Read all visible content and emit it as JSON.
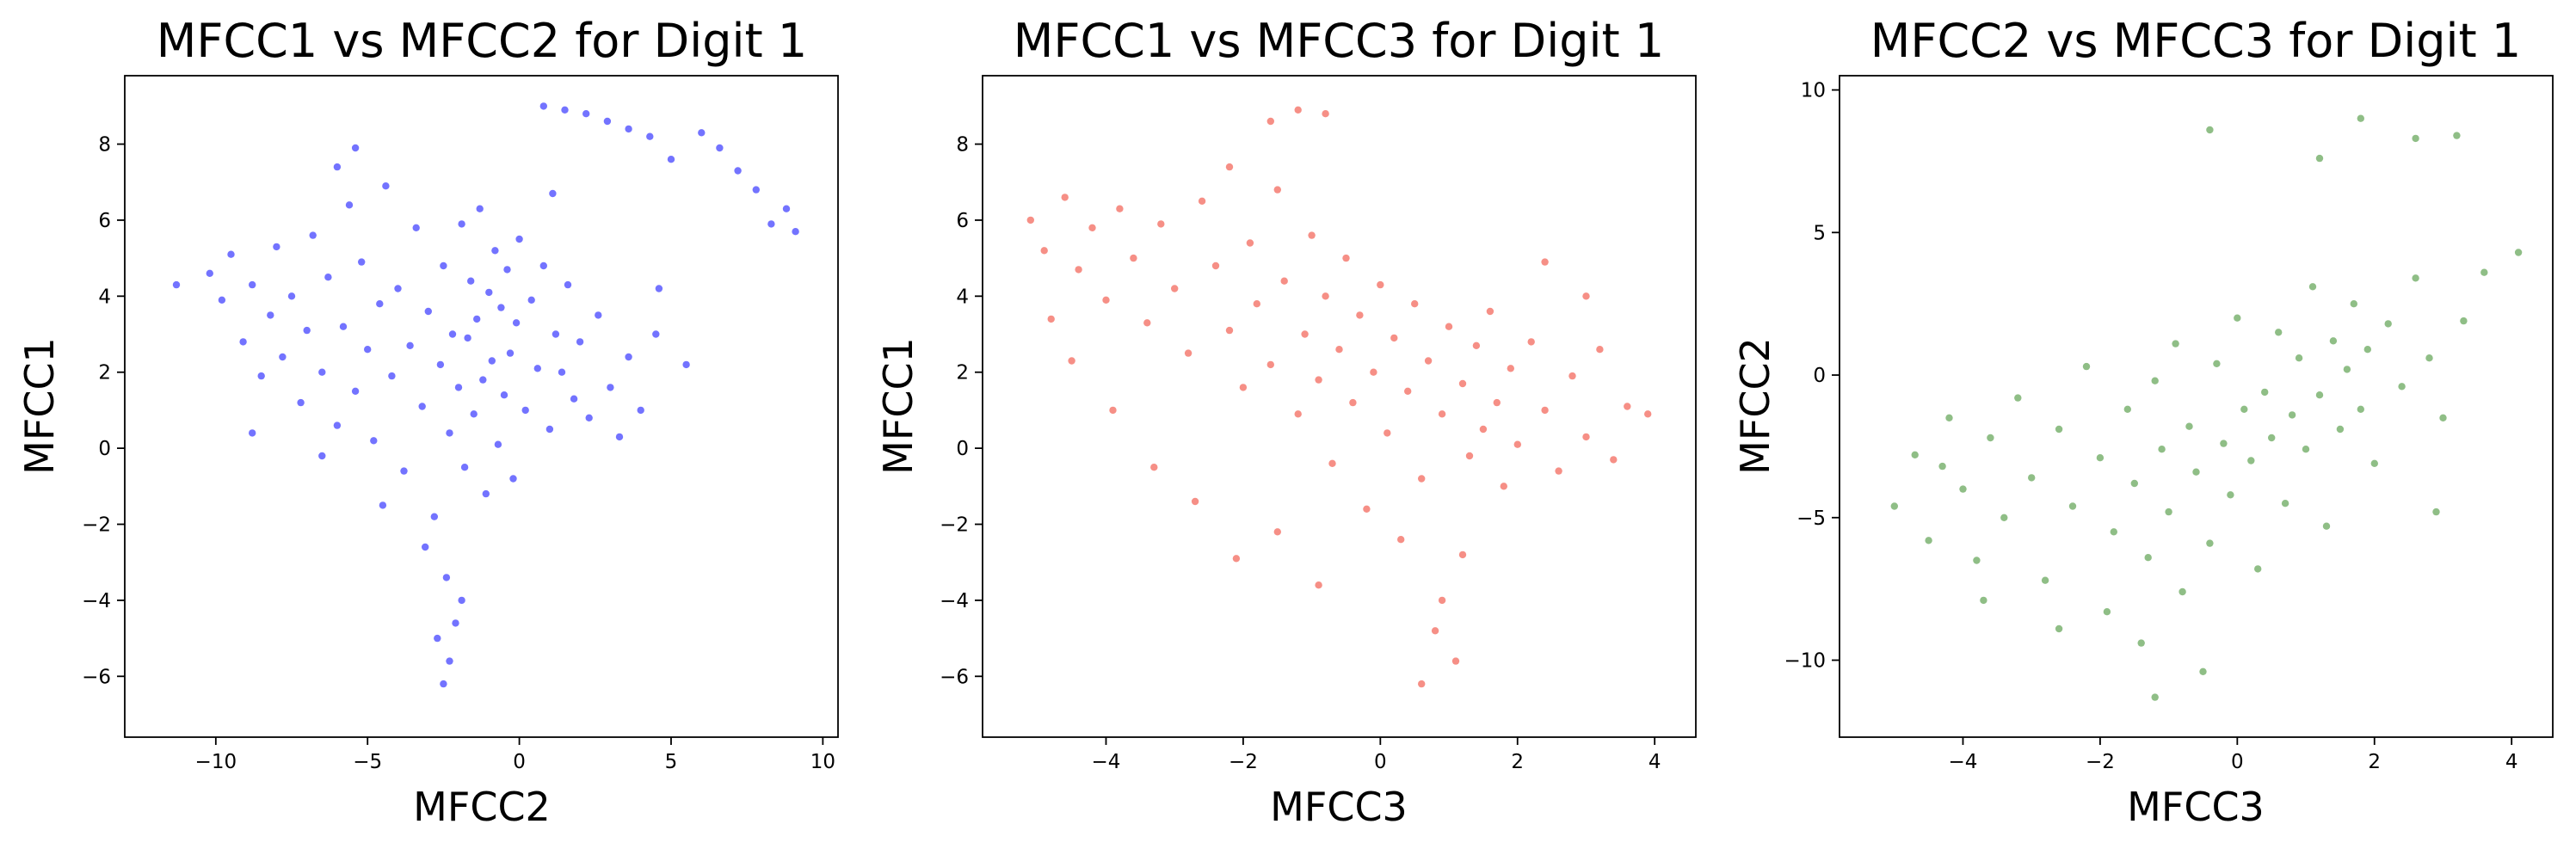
{
  "chart_data": [
    {
      "type": "scatter",
      "title": "MFCC1 vs MFCC2 for Digit 1",
      "xlabel": "MFCC2",
      "ylabel": "MFCC1",
      "color": "#0000ff",
      "xlim": [
        -13.0,
        10.5
      ],
      "ylim": [
        -7.6,
        9.8
      ],
      "xticks": [
        -10,
        -5,
        0,
        5,
        10
      ],
      "xtick_labels": [
        "−10",
        "−5",
        "0",
        "5",
        "10"
      ],
      "yticks": [
        -6,
        -4,
        -2,
        0,
        2,
        4,
        6,
        8
      ],
      "ytick_labels": [
        "−6",
        "−4",
        "−2",
        "0",
        "2",
        "4",
        "6",
        "8"
      ],
      "points": [
        [
          -10.2,
          4.6
        ],
        [
          -9.8,
          3.9
        ],
        [
          -9.5,
          5.1
        ],
        [
          -9.1,
          2.8
        ],
        [
          -8.8,
          4.3
        ],
        [
          -8.5,
          1.9
        ],
        [
          -8.2,
          3.5
        ],
        [
          -8.0,
          5.3
        ],
        [
          -7.8,
          2.4
        ],
        [
          -7.5,
          4.0
        ],
        [
          -7.2,
          1.2
        ],
        [
          -7.0,
          3.1
        ],
        [
          -6.8,
          5.6
        ],
        [
          -6.5,
          2.0
        ],
        [
          -6.3,
          4.5
        ],
        [
          -6.0,
          0.6
        ],
        [
          -5.8,
          3.2
        ],
        [
          -5.6,
          6.4
        ],
        [
          -5.4,
          1.5
        ],
        [
          -5.2,
          4.9
        ],
        [
          -5.0,
          2.6
        ],
        [
          -4.8,
          0.2
        ],
        [
          -4.6,
          3.8
        ],
        [
          -4.4,
          6.9
        ],
        [
          -4.2,
          1.9
        ],
        [
          -4.0,
          4.2
        ],
        [
          -3.8,
          -0.6
        ],
        [
          -3.6,
          2.7
        ],
        [
          -3.4,
          5.8
        ],
        [
          -3.2,
          1.1
        ],
        [
          -3.0,
          3.6
        ],
        [
          -2.8,
          -1.8
        ],
        [
          -2.6,
          2.2
        ],
        [
          -2.5,
          4.8
        ],
        [
          -2.4,
          -3.4
        ],
        [
          -2.3,
          0.4
        ],
        [
          -2.2,
          3.0
        ],
        [
          -2.1,
          -4.6
        ],
        [
          -2.0,
          1.6
        ],
        [
          -1.9,
          5.9
        ],
        [
          -1.8,
          -0.5
        ],
        [
          -1.7,
          2.9
        ],
        [
          -1.6,
          4.4
        ],
        [
          -1.5,
          0.9
        ],
        [
          -1.4,
          3.4
        ],
        [
          -1.3,
          6.3
        ],
        [
          -1.2,
          1.8
        ],
        [
          -1.1,
          -1.2
        ],
        [
          -1.0,
          4.1
        ],
        [
          -0.9,
          2.3
        ],
        [
          -0.8,
          5.2
        ],
        [
          -0.7,
          0.1
        ],
        [
          -0.6,
          3.7
        ],
        [
          -0.5,
          1.4
        ],
        [
          -0.4,
          4.7
        ],
        [
          -0.3,
          2.5
        ],
        [
          -0.2,
          -0.8
        ],
        [
          -0.1,
          3.3
        ],
        [
          0.0,
          5.5
        ],
        [
          0.2,
          1.0
        ],
        [
          0.4,
          3.9
        ],
        [
          0.6,
          2.1
        ],
        [
          0.8,
          4.8
        ],
        [
          1.0,
          0.5
        ],
        [
          1.2,
          3.0
        ],
        [
          1.4,
          2.0
        ],
        [
          1.6,
          4.3
        ],
        [
          1.8,
          1.3
        ],
        [
          2.0,
          2.8
        ],
        [
          2.3,
          0.8
        ],
        [
          2.6,
          3.5
        ],
        [
          3.0,
          1.6
        ],
        [
          3.3,
          0.3
        ],
        [
          3.6,
          2.4
        ],
        [
          4.0,
          1.0
        ],
        [
          4.5,
          3.0
        ],
        [
          5.0,
          7.6
        ],
        [
          5.5,
          2.2
        ],
        [
          6.0,
          8.3
        ],
        [
          6.6,
          7.9
        ],
        [
          7.2,
          7.3
        ],
        [
          7.8,
          6.8
        ],
        [
          8.3,
          5.9
        ],
        [
          8.8,
          6.3
        ],
        [
          9.1,
          5.7
        ],
        [
          0.8,
          9.0
        ],
        [
          1.5,
          8.9
        ],
        [
          2.2,
          8.8
        ],
        [
          2.9,
          8.6
        ],
        [
          3.6,
          8.4
        ],
        [
          4.3,
          8.2
        ],
        [
          -11.3,
          4.3
        ],
        [
          -6.0,
          7.4
        ],
        [
          -5.4,
          7.9
        ],
        [
          -2.5,
          -6.2
        ],
        [
          -2.3,
          -5.6
        ],
        [
          -2.7,
          -5.0
        ],
        [
          -1.9,
          -4.0
        ],
        [
          -3.1,
          -2.6
        ],
        [
          -4.5,
          -1.5
        ],
        [
          -6.5,
          -0.2
        ],
        [
          -8.8,
          0.4
        ],
        [
          4.6,
          4.2
        ],
        [
          1.1,
          6.7
        ]
      ]
    },
    {
      "type": "scatter",
      "title": "MFCC1 vs MFCC3 for Digit 1",
      "xlabel": "MFCC3",
      "ylabel": "MFCC1",
      "color": "#ee3322",
      "xlim": [
        -5.8,
        4.6
      ],
      "ylim": [
        -7.6,
        9.8
      ],
      "xticks": [
        -4,
        -2,
        0,
        2,
        4
      ],
      "xtick_labels": [
        "−4",
        "−2",
        "0",
        "2",
        "4"
      ],
      "yticks": [
        -6,
        -4,
        -2,
        0,
        2,
        4,
        6,
        8
      ],
      "ytick_labels": [
        "−6",
        "−4",
        "−2",
        "0",
        "2",
        "4",
        "6",
        "8"
      ],
      "points": [
        [
          -5.1,
          6.0
        ],
        [
          -4.9,
          5.2
        ],
        [
          -4.6,
          6.6
        ],
        [
          -4.4,
          4.7
        ],
        [
          -4.2,
          5.8
        ],
        [
          -4.0,
          3.9
        ],
        [
          -3.8,
          6.3
        ],
        [
          -3.6,
          5.0
        ],
        [
          -3.4,
          3.3
        ],
        [
          -3.2,
          5.9
        ],
        [
          -3.0,
          4.2
        ],
        [
          -2.8,
          2.5
        ],
        [
          -2.6,
          6.5
        ],
        [
          -2.4,
          4.8
        ],
        [
          -2.2,
          3.1
        ],
        [
          -2.0,
          1.6
        ],
        [
          -1.9,
          5.4
        ],
        [
          -1.8,
          3.8
        ],
        [
          -1.6,
          2.2
        ],
        [
          -1.5,
          6.8
        ],
        [
          -1.4,
          4.4
        ],
        [
          -1.2,
          0.9
        ],
        [
          -1.1,
          3.0
        ],
        [
          -1.0,
          5.6
        ],
        [
          -0.9,
          1.8
        ],
        [
          -0.8,
          4.0
        ],
        [
          -0.7,
          -0.4
        ],
        [
          -0.6,
          2.6
        ],
        [
          -0.5,
          5.0
        ],
        [
          -0.4,
          1.2
        ],
        [
          -0.3,
          3.5
        ],
        [
          -0.2,
          -1.6
        ],
        [
          -0.1,
          2.0
        ],
        [
          0.0,
          4.3
        ],
        [
          0.1,
          0.4
        ],
        [
          0.2,
          2.9
        ],
        [
          0.3,
          -2.4
        ],
        [
          0.4,
          1.5
        ],
        [
          0.5,
          3.8
        ],
        [
          0.6,
          -0.8
        ],
        [
          0.7,
          2.3
        ],
        [
          0.8,
          -4.8
        ],
        [
          0.9,
          0.9
        ],
        [
          1.0,
          3.2
        ],
        [
          1.1,
          -5.6
        ],
        [
          1.2,
          1.7
        ],
        [
          1.3,
          -0.2
        ],
        [
          1.4,
          2.7
        ],
        [
          1.5,
          0.5
        ],
        [
          1.6,
          3.6
        ],
        [
          1.7,
          1.2
        ],
        [
          1.8,
          -1.0
        ],
        [
          1.9,
          2.1
        ],
        [
          2.0,
          0.1
        ],
        [
          2.2,
          2.8
        ],
        [
          2.4,
          1.0
        ],
        [
          2.6,
          -0.6
        ],
        [
          2.8,
          1.9
        ],
        [
          3.0,
          0.3
        ],
        [
          3.2,
          2.6
        ],
        [
          3.4,
          -0.3
        ],
        [
          3.6,
          1.1
        ],
        [
          3.9,
          0.9
        ],
        [
          -4.5,
          2.3
        ],
        [
          -3.9,
          1.0
        ],
        [
          -3.3,
          -0.5
        ],
        [
          -2.7,
          -1.4
        ],
        [
          -2.1,
          -2.9
        ],
        [
          -1.5,
          -2.2
        ],
        [
          -0.9,
          -3.6
        ],
        [
          -1.2,
          8.9
        ],
        [
          -0.8,
          8.8
        ],
        [
          -1.6,
          8.6
        ],
        [
          -2.2,
          7.4
        ],
        [
          0.6,
          -6.2
        ],
        [
          0.9,
          -4.0
        ],
        [
          1.2,
          -2.8
        ],
        [
          2.4,
          4.9
        ],
        [
          3.0,
          4.0
        ],
        [
          -4.8,
          3.4
        ]
      ]
    },
    {
      "type": "scatter",
      "title": "MFCC2 vs MFCC3 for Digit 1",
      "xlabel": "MFCC3",
      "ylabel": "MFCC2",
      "color": "#338822",
      "xlim": [
        -5.8,
        4.6
      ],
      "ylim": [
        -12.7,
        10.5
      ],
      "xticks": [
        -4,
        -2,
        0,
        2,
        4
      ],
      "xtick_labels": [
        "−4",
        "−2",
        "0",
        "2",
        "4"
      ],
      "yticks": [
        -10,
        -5,
        0,
        5,
        10
      ],
      "ytick_labels": [
        "−10",
        "−5",
        "0",
        "5",
        "10"
      ],
      "points": [
        [
          -5.0,
          -4.6
        ],
        [
          -4.7,
          -2.8
        ],
        [
          -4.5,
          -5.8
        ],
        [
          -4.2,
          -1.5
        ],
        [
          -4.0,
          -4.0
        ],
        [
          -3.8,
          -6.5
        ],
        [
          -3.6,
          -2.2
        ],
        [
          -3.4,
          -5.0
        ],
        [
          -3.2,
          -0.8
        ],
        [
          -3.0,
          -3.6
        ],
        [
          -2.8,
          -7.2
        ],
        [
          -2.6,
          -1.9
        ],
        [
          -2.4,
          -4.6
        ],
        [
          -2.2,
          0.3
        ],
        [
          -2.0,
          -2.9
        ],
        [
          -1.9,
          -8.3
        ],
        [
          -1.8,
          -5.5
        ],
        [
          -1.6,
          -1.2
        ],
        [
          -1.5,
          -3.8
        ],
        [
          -1.4,
          -9.4
        ],
        [
          -1.3,
          -6.4
        ],
        [
          -1.2,
          -0.2
        ],
        [
          -1.1,
          -2.6
        ],
        [
          -1.0,
          -4.8
        ],
        [
          -0.9,
          1.1
        ],
        [
          -0.8,
          -7.6
        ],
        [
          -0.7,
          -1.8
        ],
        [
          -0.6,
          -3.4
        ],
        [
          -0.5,
          -10.4
        ],
        [
          -0.4,
          -5.9
        ],
        [
          -0.3,
          0.4
        ],
        [
          -0.2,
          -2.4
        ],
        [
          -0.1,
          -4.2
        ],
        [
          0.0,
          2.0
        ],
        [
          0.1,
          -1.2
        ],
        [
          0.2,
          -3.0
        ],
        [
          0.3,
          -6.8
        ],
        [
          0.4,
          -0.6
        ],
        [
          0.5,
          -2.2
        ],
        [
          0.6,
          1.5
        ],
        [
          0.7,
          -4.5
        ],
        [
          0.8,
          -1.4
        ],
        [
          0.9,
          0.6
        ],
        [
          1.0,
          -2.6
        ],
        [
          1.1,
          3.1
        ],
        [
          1.2,
          -0.7
        ],
        [
          1.3,
          -5.3
        ],
        [
          1.4,
          1.2
        ],
        [
          1.5,
          -1.9
        ],
        [
          1.6,
          0.2
        ],
        [
          1.7,
          2.5
        ],
        [
          1.8,
          -1.2
        ],
        [
          1.9,
          0.9
        ],
        [
          2.0,
          -3.1
        ],
        [
          2.2,
          1.8
        ],
        [
          2.4,
          -0.4
        ],
        [
          2.6,
          3.4
        ],
        [
          2.8,
          0.6
        ],
        [
          3.0,
          -1.5
        ],
        [
          3.3,
          1.9
        ],
        [
          3.6,
          3.6
        ],
        [
          1.8,
          9.0
        ],
        [
          2.6,
          8.3
        ],
        [
          -0.4,
          8.6
        ],
        [
          1.2,
          7.6
        ],
        [
          3.2,
          8.4
        ],
        [
          4.1,
          4.3
        ],
        [
          -2.6,
          -8.9
        ],
        [
          -1.2,
          -11.3
        ],
        [
          -3.7,
          -7.9
        ],
        [
          2.9,
          -4.8
        ],
        [
          -4.3,
          -3.2
        ]
      ]
    }
  ]
}
